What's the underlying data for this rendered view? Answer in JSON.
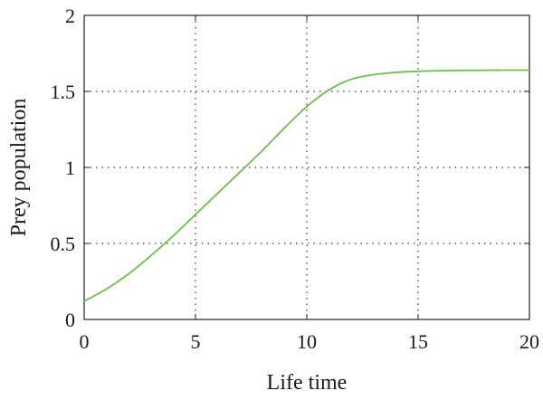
{
  "chart_data": {
    "type": "line",
    "title": "",
    "xlabel": "Life time",
    "ylabel": "Prey population",
    "xlim": [
      0,
      20
    ],
    "ylim": [
      0,
      2
    ],
    "xticks": [
      0,
      5,
      10,
      15,
      20
    ],
    "yticks": [
      0,
      0.5,
      1,
      1.5,
      2
    ],
    "xtick_labels": [
      "0",
      "5",
      "10",
      "15",
      "20"
    ],
    "ytick_labels": [
      "0",
      "0.5",
      "1",
      "1.5",
      "2"
    ],
    "grid": true,
    "grid_style": "dotted",
    "legend": "none",
    "series": [
      {
        "color": "#6cc04a",
        "x": [
          0,
          1,
          2,
          3,
          4,
          5,
          6,
          7,
          8,
          9,
          10,
          11,
          12,
          13,
          14,
          15,
          16,
          17,
          18,
          19,
          20
        ],
        "y": [
          0.12,
          0.2,
          0.3,
          0.42,
          0.55,
          0.69,
          0.83,
          0.97,
          1.11,
          1.26,
          1.4,
          1.51,
          1.58,
          1.61,
          1.625,
          1.632,
          1.636,
          1.638,
          1.639,
          1.64,
          1.64
        ]
      }
    ]
  }
}
